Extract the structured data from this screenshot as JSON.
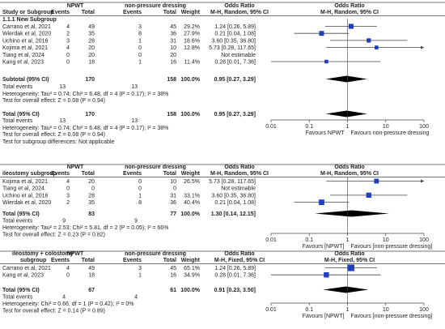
{
  "chart_data": [
    {
      "type": "forest",
      "columns": {
        "study": "Study or Subgroup",
        "group1": "NPWT",
        "group2": "non-pressure dressing",
        "events": "Events",
        "total": "Total",
        "weight": "Weight",
        "or_title": "Odds Ratio",
        "method": "M-H, Random, 95% CI",
        "plot_title": "Odds Ratio",
        "plot_method": "M-H, Random, 95% CI"
      },
      "subgroup": "1.1.1 New Subgroup",
      "studies": [
        {
          "name": "Carrano et al, 2021",
          "e1": "4",
          "t1": "49",
          "e2": "3",
          "t2": "45",
          "weight": "29.2%",
          "ci": "1.24 [0.26, 5.89]",
          "or": 1.24,
          "lo": 0.26,
          "hi": 5.89,
          "w": 29.2
        },
        {
          "name": "Wierdak et al, 2020",
          "e1": "2",
          "t1": "35",
          "e2": "8",
          "t2": "36",
          "weight": "27.9%",
          "ci": "0.21 [0.04, 1.08]",
          "or": 0.21,
          "lo": 0.04,
          "hi": 1.08,
          "w": 27.9
        },
        {
          "name": "Uchino et al, 2016",
          "e1": "3",
          "t1": "28",
          "e2": "1",
          "t2": "31",
          "weight": "18.6%",
          "ci": "3.60 [0.35, 36.80]",
          "or": 3.6,
          "lo": 0.35,
          "hi": 36.8,
          "w": 18.6
        },
        {
          "name": "Kojima et al, 2021",
          "e1": "4",
          "t1": "20",
          "e2": "0",
          "t2": "10",
          "weight": "12.8%",
          "ci": "5.73 [0.28, 117.65]",
          "or": 5.73,
          "lo": 0.28,
          "hi": 117.65,
          "w": 12.8
        },
        {
          "name": "Tiang et al, 2024",
          "e1": "0",
          "t1": "20",
          "e2": "0",
          "t2": "20",
          "weight": "",
          "ci": "Not estimable",
          "or": null,
          "lo": null,
          "hi": null,
          "w": 0
        },
        {
          "name": "Kang et al, 2023",
          "e1": "0",
          "t1": "18",
          "e2": "1",
          "t2": "16",
          "weight": "11.4%",
          "ci": "0.28 [0.01, 7.36]",
          "or": 0.28,
          "lo": 0.01,
          "hi": 7.36,
          "w": 11.4
        }
      ],
      "subtotal": {
        "label": "Subtotal (95% CI)",
        "t1": "170",
        "t2": "158",
        "weight": "100.0%",
        "ci": "0.95 [0.27, 3.29]",
        "or": 0.95,
        "lo": 0.27,
        "hi": 3.29
      },
      "subtotal_events": {
        "label": "Total events",
        "e1": "13",
        "e2": "13"
      },
      "subtotal_het": "Heterogeneity: Tau² = 0.74; Chi² = 6.48, df = 4 (P = 0.17); I² = 38%",
      "subtotal_effect": "Test for overall effect: Z = 0.08 (P = 0.94)",
      "total": {
        "label": "Total (95% CI)",
        "t1": "170",
        "t2": "158",
        "weight": "100.0%",
        "ci": "0.95 [0.27, 3.29]",
        "or": 0.95,
        "lo": 0.27,
        "hi": 3.29
      },
      "total_events": {
        "label": "Total events",
        "e1": "13",
        "e2": "13"
      },
      "total_het": "Heterogeneity: Tau² = 0.74; Chi² = 6.48, df = 4 (P = 0.17); I² = 38%",
      "total_effect": "Test for overall effect: Z = 0.08 (P = 0.94)",
      "subgroup_diff": "Test for subgroup differences: Not applicable",
      "axis": {
        "ticks": [
          "0.01",
          "0.1",
          "1",
          "10",
          "100"
        ],
        "values": [
          0.01,
          0.1,
          1,
          10,
          100
        ],
        "left_label": "Favours NPWT",
        "right_label": "Favours non-pressure dressing",
        "log": true
      }
    },
    {
      "type": "forest",
      "columns": {
        "study": "ileostomy subgroup",
        "group1": "NPWT",
        "group2": "non-pressure dressing",
        "events": "Events",
        "total": "Total",
        "weight": "Weight",
        "or_title": "Odds Ratio",
        "method": "M-H, Random, 95% CI",
        "plot_title": "Odds Ratio",
        "plot_method": "M-H, Random, 95% CI"
      },
      "studies": [
        {
          "name": "Kojima et al, 2021",
          "e1": "4",
          "t1": "20",
          "e2": "0",
          "t2": "10",
          "weight": "26.5%",
          "ci": "5.73 [0.28, 117.65]",
          "or": 5.73,
          "lo": 0.28,
          "hi": 117.65,
          "w": 26.5
        },
        {
          "name": "Tiang et al, 2024",
          "e1": "0",
          "t1": "0",
          "e2": "0",
          "t2": "0",
          "weight": "",
          "ci": "Not estimable",
          "or": null,
          "lo": null,
          "hi": null,
          "w": 0
        },
        {
          "name": "Uchino et al, 2016",
          "e1": "3",
          "t1": "28",
          "e2": "1",
          "t2": "31",
          "weight": "33.1%",
          "ci": "3.60 [0.35, 36.80]",
          "or": 3.6,
          "lo": 0.35,
          "hi": 36.8,
          "w": 33.1
        },
        {
          "name": "Wierdak et al, 2020",
          "e1": "2",
          "t1": "35",
          "e2": "8",
          "t2": "36",
          "weight": "40.4%",
          "ci": "0.21 [0.04, 1.08]",
          "or": 0.21,
          "lo": 0.04,
          "hi": 1.08,
          "w": 40.4
        }
      ],
      "total": {
        "label": "Total (95% CI)",
        "t1": "83",
        "t2": "77",
        "weight": "100.0%",
        "ci": "1.30 [0.14, 12.15]",
        "or": 1.3,
        "lo": 0.14,
        "hi": 12.15
      },
      "total_events": {
        "label": "Total events",
        "e1": "9",
        "e2": "9"
      },
      "total_het": "Heterogeneity: Tau² = 2.53; Chi² = 5.81, df = 2 (P = 0.05); I² = 66%",
      "total_effect": "Test for overall effect: Z = 0.23 (P = 0.82)",
      "axis": {
        "ticks": [
          "0.01",
          "0.1",
          "1",
          "10",
          "100"
        ],
        "values": [
          0.01,
          0.1,
          1,
          10,
          100
        ],
        "left_label": "Favours [NPWT]",
        "right_label": "Favours [non-pressure dressing]",
        "log": true
      }
    },
    {
      "type": "forest",
      "columns": {
        "study": "ileostomy + colostomy",
        "study2": "subgroup",
        "group1": "NPWT",
        "group2": "non-pressure dressing",
        "events": "Events",
        "total": "Total",
        "weight": "Weight",
        "or_title": "Odds Ratio",
        "method": "M-H, Fixed, 95% CI",
        "plot_title": "Odds Ratio",
        "plot_method": "M-H, Fixed, 95% CI"
      },
      "studies": [
        {
          "name": "Carrano et al, 2021",
          "e1": "4",
          "t1": "49",
          "e2": "3",
          "t2": "45",
          "weight": "65.1%",
          "ci": "1.24 [0.26, 5.89]",
          "or": 1.24,
          "lo": 0.26,
          "hi": 5.89,
          "w": 65.1
        },
        {
          "name": "Kang et al, 2023",
          "e1": "0",
          "t1": "18",
          "e2": "1",
          "t2": "16",
          "weight": "34.9%",
          "ci": "0.28 [0.01, 7.36]",
          "or": 0.28,
          "lo": 0.01,
          "hi": 7.36,
          "w": 34.9
        }
      ],
      "total": {
        "label": "Total (95% CI)",
        "t1": "67",
        "t2": "61",
        "weight": "100.0%",
        "ci": "0.91 [0.23, 3.50]",
        "or": 0.91,
        "lo": 0.23,
        "hi": 3.5
      },
      "total_events": {
        "label": "Total events",
        "e1": "4",
        "e2": "4"
      },
      "total_het": "Heterogeneity: Chi² = 0.66, df = 1 (P = 0.42); I² = 0%",
      "total_effect": "Test for overall effect: Z = 0.14 (P = 0.89)",
      "axis": {
        "ticks": [
          "0.01",
          "0.1",
          "1",
          "10",
          "100"
        ],
        "values": [
          0.01,
          0.1,
          1,
          10,
          100
        ],
        "left_label": "Favours [NPWT]",
        "right_label": "Favours [non-pressure dressing]",
        "log": true
      }
    }
  ],
  "colors": {
    "square": "#1f3fbf",
    "diamond": "#000000",
    "rule": "#444444",
    "text": "#222222"
  }
}
